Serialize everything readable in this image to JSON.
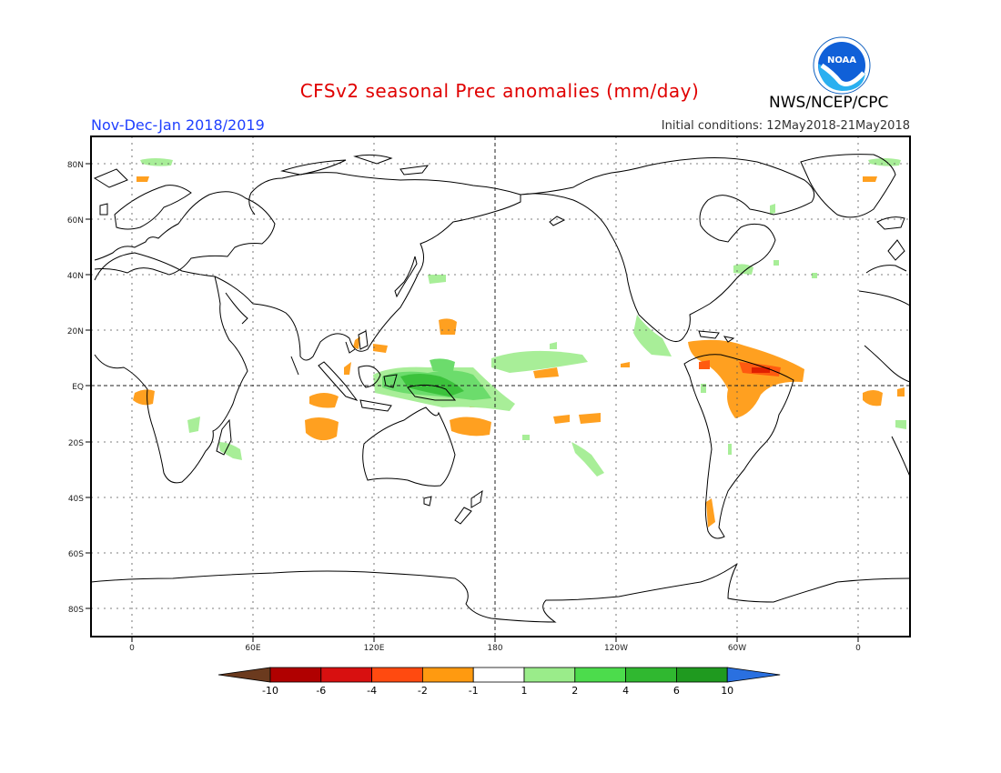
{
  "title": "CFSv2 seasonal Prec anomalies (mm/day)",
  "period": "Nov-Dec-Jan 2018/2019",
  "initial_conditions": "Initial conditions: 12May2018-21May2018",
  "agency": "NWS/NCEP/CPC",
  "logo": {
    "text": "NOAA",
    "icon": "noaa-logo-icon"
  },
  "lat_labels": [
    "80N",
    "60N",
    "40N",
    "20N",
    "EQ",
    "20S",
    "40S",
    "60S",
    "80S"
  ],
  "lon_labels": [
    "0",
    "60E",
    "120E",
    "180",
    "120W",
    "60W",
    "0"
  ],
  "colorbar": {
    "labels": [
      "-10",
      "-6",
      "-4",
      "-2",
      "-1",
      "1",
      "2",
      "4",
      "6",
      "10"
    ],
    "colors": [
      "#6b3a1e",
      "#b00000",
      "#d81010",
      "#ff4a10",
      "#ff9a10",
      "#ffffff",
      "#9aec8a",
      "#4cdc4c",
      "#30b830",
      "#1f9a1f",
      "#2a70e0"
    ]
  },
  "colors": {
    "dry_moderate": "#ffa020",
    "dry_strong": "#ff5a10",
    "dry_extreme": "#e02000",
    "wet_light": "#a8ee98",
    "wet_moderate": "#6cdc6c",
    "wet_strong": "#3cc23c"
  }
}
